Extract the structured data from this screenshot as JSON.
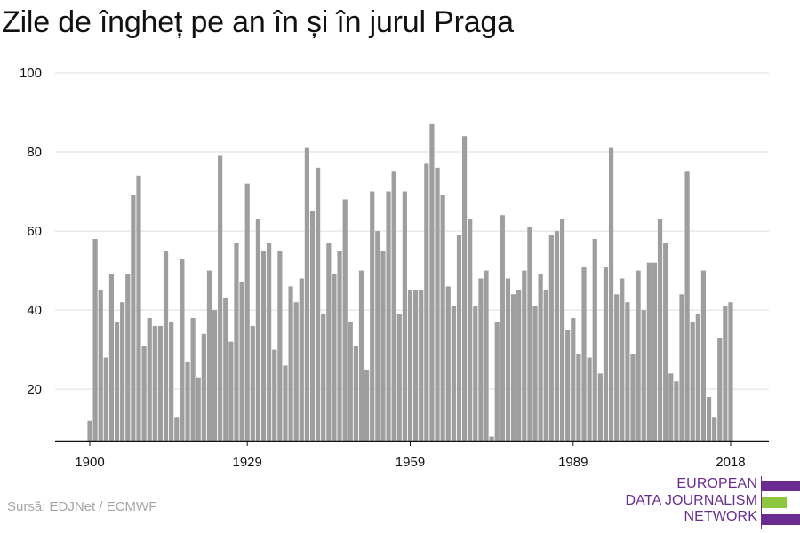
{
  "title": "Zile de îngheț pe an în și în jurul Praga",
  "source": "Sursă: EDJNet / ECMWF",
  "logo": {
    "line1": "EUROPEAN",
    "line2": "DATA JOURNALISM",
    "line3": "NETWORK",
    "colors": {
      "purple": "#6a2c91",
      "green": "#8dc63f"
    }
  },
  "colors": {
    "bar": "#9e9e9e",
    "grid": "#dddddd",
    "axis": "#111111"
  },
  "chart_data": {
    "type": "bar",
    "title": "Zile de îngheț pe an în și în jurul Praga",
    "xlabel": "",
    "ylabel": "",
    "ylim": [
      7,
      100
    ],
    "grid": true,
    "y_ticks": [
      20,
      40,
      60,
      80,
      100
    ],
    "x_ticks": [
      1900,
      1929,
      1959,
      1989,
      2018
    ],
    "x": [
      1900,
      1901,
      1902,
      1903,
      1904,
      1905,
      1906,
      1907,
      1908,
      1909,
      1910,
      1911,
      1912,
      1913,
      1914,
      1915,
      1916,
      1917,
      1918,
      1919,
      1920,
      1921,
      1922,
      1923,
      1924,
      1925,
      1926,
      1927,
      1928,
      1929,
      1930,
      1931,
      1932,
      1933,
      1934,
      1935,
      1936,
      1937,
      1938,
      1939,
      1940,
      1941,
      1942,
      1943,
      1944,
      1945,
      1946,
      1947,
      1948,
      1949,
      1950,
      1951,
      1952,
      1953,
      1954,
      1955,
      1956,
      1957,
      1958,
      1959,
      1960,
      1961,
      1962,
      1963,
      1964,
      1965,
      1966,
      1967,
      1968,
      1969,
      1970,
      1971,
      1972,
      1973,
      1974,
      1975,
      1976,
      1977,
      1978,
      1979,
      1980,
      1981,
      1982,
      1983,
      1984,
      1985,
      1986,
      1987,
      1988,
      1989,
      1990,
      1991,
      1992,
      1993,
      1994,
      1995,
      1996,
      1997,
      1998,
      1999,
      2000,
      2001,
      2002,
      2003,
      2004,
      2005,
      2006,
      2007,
      2008,
      2009,
      2010,
      2011,
      2012,
      2013,
      2014,
      2015,
      2016,
      2017,
      2018
    ],
    "values": [
      12,
      58,
      45,
      28,
      49,
      37,
      42,
      49,
      69,
      74,
      31,
      38,
      36,
      36,
      55,
      37,
      13,
      53,
      27,
      38,
      23,
      34,
      50,
      40,
      79,
      43,
      32,
      57,
      47,
      72,
      36,
      63,
      55,
      57,
      30,
      55,
      26,
      46,
      42,
      48,
      81,
      65,
      76,
      39,
      57,
      49,
      55,
      68,
      37,
      31,
      50,
      25,
      70,
      60,
      55,
      70,
      75,
      39,
      70,
      45,
      45,
      45,
      77,
      87,
      76,
      69,
      46,
      41,
      59,
      84,
      63,
      41,
      48,
      50,
      8,
      37,
      64,
      48,
      44,
      45,
      50,
      61,
      41,
      49,
      45,
      59,
      60,
      63,
      35,
      38,
      29,
      51,
      28,
      58,
      24,
      51,
      81,
      44,
      48,
      42,
      29,
      50,
      40,
      52,
      52,
      63,
      57,
      24,
      22,
      44,
      75,
      37,
      39,
      50,
      18,
      13,
      33,
      41,
      42
    ]
  }
}
